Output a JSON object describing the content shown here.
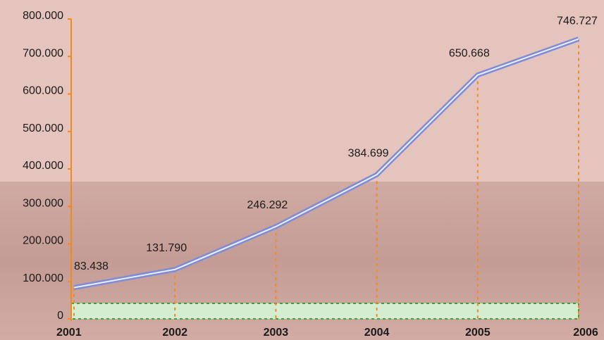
{
  "chart_data": {
    "type": "line",
    "categories": [
      "2001",
      "2002",
      "2003",
      "2004",
      "2005",
      "2006"
    ],
    "values": [
      83438,
      131790,
      246292,
      384699,
      650668,
      746727
    ],
    "value_labels": [
      "83.438",
      "131.790",
      "246.292",
      "384.699",
      "650.668",
      "746.727"
    ],
    "color": "#7c8cd6",
    "ylim": [
      0,
      800000
    ],
    "yticks": [
      0,
      {
        "value": 100000,
        "label": "100.000"
      },
      {
        "value": 200000,
        "label": "200.000"
      },
      {
        "value": 300000,
        "label": "300.000"
      },
      {
        "value": 400000,
        "label": "400.000"
      },
      {
        "value": 500000,
        "label": "500.000"
      },
      {
        "value": 600000,
        "label": "600.000"
      },
      {
        "value": 700000,
        "label": "700.000"
      },
      {
        "value": 800000,
        "label": "800.000"
      }
    ]
  }
}
